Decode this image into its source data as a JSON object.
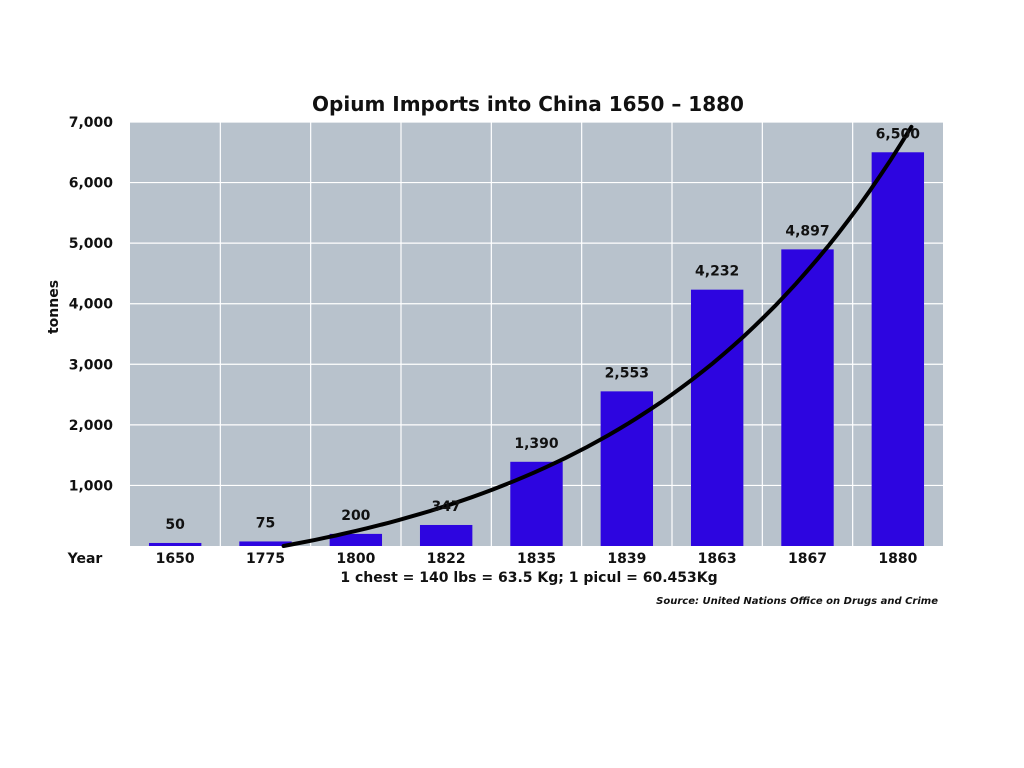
{
  "chart_data": {
    "type": "bar",
    "title": "Opium Imports into China 1650 – 1880",
    "ylabel": "tonnes",
    "xlabel": "Year",
    "categories": [
      "1650",
      "1775",
      "1800",
      "1822",
      "1835",
      "1839",
      "1863",
      "1867",
      "1880"
    ],
    "values": [
      50,
      75,
      200,
      347,
      1390,
      2553,
      4232,
      4897,
      6500
    ],
    "data_labels": [
      "50",
      "75",
      "200",
      "347",
      "1,390",
      "2,553",
      "4,232",
      "4,897",
      "6,500"
    ],
    "yticks": [
      0,
      1000,
      2000,
      3000,
      4000,
      5000,
      6000,
      7000
    ],
    "ytick_labels": [
      "",
      "1,000",
      "2,000",
      "3,000",
      "4,000",
      "5,000",
      "6,000",
      "7,000"
    ],
    "ylim": [
      0,
      7000
    ],
    "grid": true,
    "trend_line": "exponential curve",
    "note": "1 chest = 140 lbs = 63.5 Kg; 1 picul = 60.453Kg",
    "source": "Source: United Nations Office on Drugs and Crime",
    "colors": {
      "bar": "#2d05e0",
      "plot_background": "#b8c2cc",
      "grid": "#ffffff",
      "trend": "#000000"
    }
  }
}
